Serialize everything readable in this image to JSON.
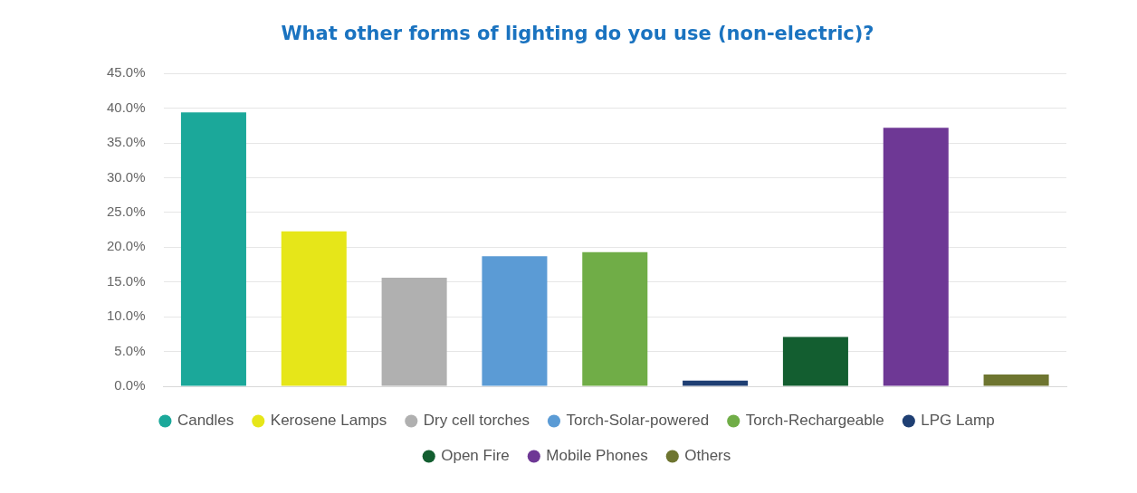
{
  "chart_data": {
    "type": "bar",
    "title": "What other forms of lighting do you use (non-electric)?",
    "categories": [
      null,
      null,
      null,
      null,
      null,
      null,
      null,
      null,
      null
    ],
    "series": [
      {
        "name": "Candles",
        "color": "#1ba89a",
        "values": [
          39.4,
          null,
          null,
          null,
          null,
          null,
          null,
          null,
          null
        ]
      },
      {
        "name": "Kerosene Lamps",
        "color": "#e6e619",
        "values": [
          null,
          22.3,
          null,
          null,
          null,
          null,
          null,
          null,
          null
        ]
      },
      {
        "name": "Dry cell torches",
        "color": "#b0b0b0",
        "values": [
          null,
          null,
          15.6,
          null,
          null,
          null,
          null,
          null,
          null
        ]
      },
      {
        "name": "Torch-Solar-powered",
        "color": "#5b9bd5",
        "values": [
          null,
          null,
          null,
          18.7,
          null,
          null,
          null,
          null,
          null
        ]
      },
      {
        "name": "Torch-Rechargeable",
        "color": "#70ad47",
        "values": [
          null,
          null,
          null,
          null,
          19.3,
          null,
          null,
          null,
          null
        ]
      },
      {
        "name": "LPG Lamp",
        "color": "#1f3f73",
        "values": [
          null,
          null,
          null,
          null,
          null,
          0.8,
          null,
          null,
          null
        ]
      },
      {
        "name": "Open Fire",
        "color": "#135e30",
        "values": [
          null,
          null,
          null,
          null,
          null,
          null,
          7.1,
          null,
          null
        ]
      },
      {
        "name": "Mobile Phones",
        "color": "#6e3895",
        "values": [
          null,
          null,
          null,
          null,
          null,
          null,
          null,
          37.2,
          null
        ]
      },
      {
        "name": "Others",
        "color": "#6e7530",
        "values": [
          null,
          null,
          null,
          null,
          null,
          null,
          null,
          null,
          1.7
        ]
      }
    ],
    "ylim": [
      0,
      45
    ],
    "yticks": [
      {
        "value": 0,
        "label": "0.0%"
      },
      {
        "value": 5,
        "label": "5.0%"
      },
      {
        "value": 10,
        "label": "10.0%"
      },
      {
        "value": 15,
        "label": "15.0%"
      },
      {
        "value": 20,
        "label": "20.0%"
      },
      {
        "value": 25,
        "label": "25.0%"
      },
      {
        "value": 30,
        "label": "30.0%"
      },
      {
        "value": 35,
        "label": "35.0%"
      },
      {
        "value": 40,
        "label": "40.0%"
      },
      {
        "value": 45,
        "label": "45.0%"
      }
    ],
    "grid": "y",
    "legend": "bottom",
    "tick_labels": "y",
    "marker": "circle"
  }
}
